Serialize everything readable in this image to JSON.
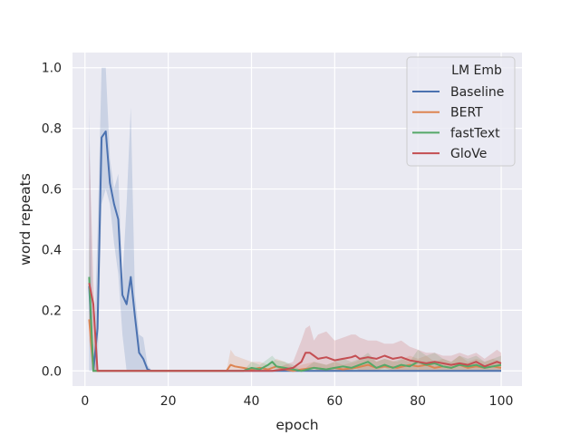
{
  "chart_data": {
    "type": "line",
    "title": "",
    "xlabel": "epoch",
    "ylabel": "word repeats",
    "xlim": [
      -3,
      105
    ],
    "ylim": [
      -0.05,
      1.05
    ],
    "xticks": [
      0,
      20,
      40,
      60,
      80,
      100
    ],
    "yticks": [
      0.0,
      0.2,
      0.4,
      0.6,
      0.8,
      1.0
    ],
    "xtick_labels": [
      "0",
      "20",
      "40",
      "60",
      "80",
      "100"
    ],
    "ytick_labels": [
      "0.0",
      "0.2",
      "0.4",
      "0.6",
      "0.8",
      "1.0"
    ],
    "grid": true,
    "legend": {
      "title": "LM Emb",
      "position": "top-right"
    },
    "series": [
      {
        "name": "Baseline",
        "color": "#4c72b0",
        "x": [
          1,
          2,
          3,
          4,
          5,
          6,
          7,
          8,
          9,
          10,
          11,
          12,
          13,
          14,
          15,
          16,
          20,
          40,
          60,
          80,
          100
        ],
        "y": [
          0.28,
          0.0,
          0.14,
          0.77,
          0.79,
          0.62,
          0.55,
          0.5,
          0.25,
          0.22,
          0.31,
          0.18,
          0.06,
          0.04,
          0.005,
          0.0,
          0.0,
          0.0,
          0.0,
          0.0,
          0.0
        ],
        "band_upper": [
          0.87,
          0.0,
          0.45,
          1.0,
          1.0,
          0.7,
          0.6,
          0.65,
          0.3,
          0.55,
          0.87,
          0.25,
          0.12,
          0.11,
          0.02,
          0.0,
          0.0,
          0.0,
          0.0,
          0.0,
          0.0
        ],
        "band_lower": [
          0.0,
          0.0,
          0.0,
          0.55,
          0.6,
          0.55,
          0.42,
          0.32,
          0.12,
          0.0,
          0.0,
          0.0,
          0.0,
          0.0,
          0.0,
          0.0,
          0.0,
          0.0,
          0.0,
          0.0,
          0.0
        ]
      },
      {
        "name": "BERT",
        "color": "#dd8452",
        "x": [
          1,
          2,
          3,
          34,
          35,
          36,
          38,
          40,
          42,
          44,
          46,
          48,
          50,
          52,
          55,
          58,
          60,
          62,
          65,
          68,
          70,
          72,
          75,
          78,
          80,
          82,
          84,
          86,
          88,
          90,
          92,
          94,
          96,
          98,
          100
        ],
        "y": [
          0.17,
          0.0,
          0.0,
          0.0,
          0.02,
          0.015,
          0.01,
          0.005,
          0.01,
          0.005,
          0.015,
          0.005,
          0.0,
          0.005,
          0.01,
          0.005,
          0.01,
          0.005,
          0.01,
          0.02,
          0.01,
          0.015,
          0.01,
          0.02,
          0.015,
          0.02,
          0.01,
          0.015,
          0.01,
          0.02,
          0.01,
          0.015,
          0.01,
          0.015,
          0.01
        ],
        "band_upper": [
          0.25,
          0.0,
          0.0,
          0.0,
          0.07,
          0.05,
          0.04,
          0.03,
          0.03,
          0.02,
          0.04,
          0.03,
          0.01,
          0.02,
          0.03,
          0.02,
          0.03,
          0.02,
          0.03,
          0.05,
          0.03,
          0.04,
          0.03,
          0.05,
          0.04,
          0.05,
          0.03,
          0.04,
          0.03,
          0.05,
          0.03,
          0.04,
          0.03,
          0.04,
          0.03
        ],
        "band_lower": [
          0.1,
          0.0,
          0.0,
          0.0,
          0.0,
          0.0,
          0.0,
          0.0,
          0.0,
          0.0,
          0.0,
          0.0,
          0.0,
          0.0,
          0.0,
          0.0,
          0.0,
          0.0,
          0.0,
          0.0,
          0.0,
          0.0,
          0.0,
          0.0,
          0.0,
          0.0,
          0.0,
          0.0,
          0.0,
          0.0,
          0.0,
          0.0,
          0.0,
          0.0,
          0.0
        ]
      },
      {
        "name": "fastText",
        "color": "#55a868",
        "x": [
          1,
          2,
          3,
          38,
          40,
          42,
          44,
          45,
          46,
          48,
          50,
          52,
          55,
          58,
          60,
          62,
          64,
          66,
          68,
          70,
          72,
          74,
          76,
          78,
          80,
          82,
          84,
          86,
          88,
          90,
          92,
          94,
          96,
          98,
          100
        ],
        "y": [
          0.31,
          0.0,
          0.0,
          0.0,
          0.01,
          0.005,
          0.02,
          0.03,
          0.015,
          0.01,
          0.005,
          0.0,
          0.01,
          0.005,
          0.01,
          0.015,
          0.01,
          0.02,
          0.03,
          0.01,
          0.02,
          0.01,
          0.02,
          0.015,
          0.03,
          0.02,
          0.025,
          0.015,
          0.01,
          0.02,
          0.015,
          0.02,
          0.01,
          0.015,
          0.02
        ],
        "band_upper": [
          0.45,
          0.0,
          0.0,
          0.0,
          0.03,
          0.02,
          0.04,
          0.05,
          0.035,
          0.03,
          0.02,
          0.0,
          0.03,
          0.02,
          0.03,
          0.04,
          0.03,
          0.04,
          0.06,
          0.03,
          0.04,
          0.03,
          0.04,
          0.03,
          0.07,
          0.05,
          0.06,
          0.04,
          0.03,
          0.05,
          0.04,
          0.05,
          0.03,
          0.04,
          0.05
        ],
        "band_lower": [
          0.18,
          0.0,
          0.0,
          0.0,
          0.0,
          0.0,
          0.0,
          0.01,
          0.0,
          0.0,
          0.0,
          0.0,
          0.0,
          0.0,
          0.0,
          0.0,
          0.0,
          0.0,
          0.0,
          0.0,
          0.0,
          0.0,
          0.0,
          0.0,
          0.0,
          0.0,
          0.0,
          0.0,
          0.0,
          0.0,
          0.0,
          0.0,
          0.0,
          0.0,
          0.0
        ]
      },
      {
        "name": "GloVe",
        "color": "#c44e52",
        "x": [
          1,
          2,
          3,
          40,
          45,
          48,
          50,
          52,
          53,
          54,
          55,
          56,
          58,
          60,
          62,
          64,
          65,
          66,
          68,
          70,
          72,
          74,
          76,
          78,
          80,
          82,
          84,
          86,
          88,
          90,
          92,
          94,
          96,
          98,
          99,
          100
        ],
        "y": [
          0.29,
          0.22,
          0.0,
          0.0,
          0.0,
          0.005,
          0.01,
          0.03,
          0.06,
          0.06,
          0.05,
          0.04,
          0.045,
          0.035,
          0.04,
          0.045,
          0.05,
          0.04,
          0.045,
          0.04,
          0.05,
          0.04,
          0.045,
          0.035,
          0.03,
          0.025,
          0.03,
          0.025,
          0.02,
          0.025,
          0.02,
          0.03,
          0.015,
          0.025,
          0.03,
          0.025
        ],
        "band_upper": [
          0.76,
          0.3,
          0.0,
          0.0,
          0.0,
          0.02,
          0.03,
          0.1,
          0.14,
          0.15,
          0.1,
          0.12,
          0.13,
          0.1,
          0.11,
          0.12,
          0.12,
          0.11,
          0.1,
          0.1,
          0.09,
          0.09,
          0.1,
          0.08,
          0.07,
          0.06,
          0.06,
          0.05,
          0.05,
          0.06,
          0.05,
          0.06,
          0.04,
          0.06,
          0.07,
          0.06
        ],
        "band_lower": [
          0.15,
          0.0,
          0.0,
          0.0,
          0.0,
          0.0,
          0.0,
          0.0,
          0.01,
          0.01,
          0.01,
          0.0,
          0.0,
          0.0,
          0.0,
          0.0,
          0.01,
          0.0,
          0.0,
          0.0,
          0.01,
          0.0,
          0.0,
          0.0,
          0.0,
          0.0,
          0.0,
          0.0,
          0.0,
          0.0,
          0.0,
          0.0,
          0.0,
          0.0,
          0.0,
          0.0
        ]
      }
    ]
  }
}
